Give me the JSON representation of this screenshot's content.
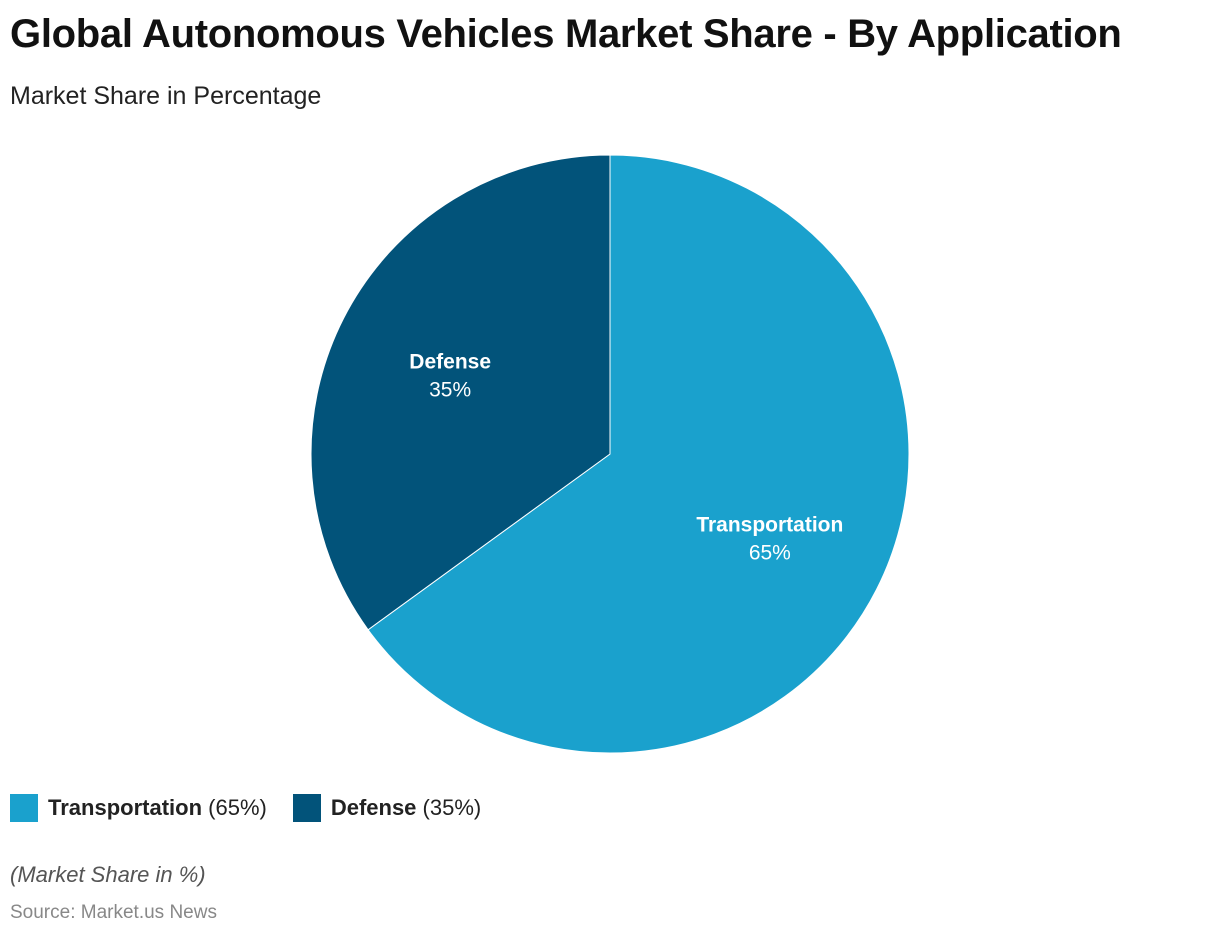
{
  "title": "Global Autonomous Vehicles Market Share - By Application",
  "subtitle": "Market Share in Percentage",
  "note": "(Market Share in %)",
  "source": "Source: Market.us News",
  "chart_data": {
    "type": "pie",
    "title": "Global Autonomous Vehicles Market Share - By Application",
    "subtitle": "Market Share in Percentage",
    "slices": [
      {
        "label": "Transportation",
        "value": 65,
        "display": "65%",
        "legend_value": "(65%)",
        "color": "#1aa1cd"
      },
      {
        "label": "Defense",
        "value": 35,
        "display": "35%",
        "legend_value": "(35%)",
        "color": "#02537a"
      }
    ],
    "legend_placement": "bottom-left"
  }
}
